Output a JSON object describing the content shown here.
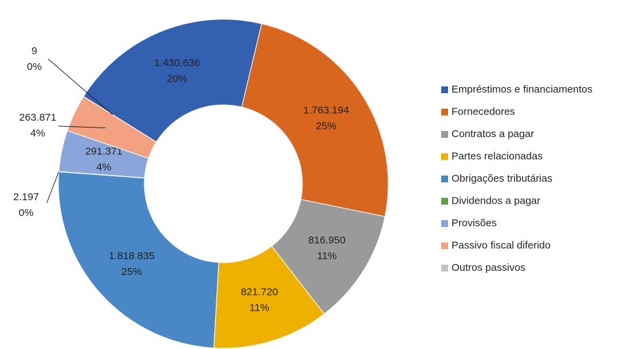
{
  "chart_data": {
    "type": "donut",
    "categories": [
      "Empréstimos e financiamentos",
      "Fornecedores",
      "Contratos a pagar",
      "Partes relacionadas",
      "Obrigações tributárias",
      "Dividendos a pagar",
      "Provisões",
      "Passivo fiscal diferido",
      "Outros passivos"
    ],
    "values": [
      1430636,
      1763194,
      816950,
      821720,
      1818835,
      2197,
      291371,
      263871,
      9
    ],
    "value_labels": [
      "1.430.636",
      "1.763.194",
      "816.950",
      "821.720",
      "1.818.835",
      "2.197",
      "291.371",
      "263.871",
      "9"
    ],
    "percents": [
      20,
      25,
      11,
      11,
      25,
      0,
      4,
      4,
      0
    ],
    "percent_labels": [
      "20%",
      "25%",
      "11%",
      "11%",
      "25%",
      "0%",
      "4%",
      "4%",
      "0%"
    ],
    "colors": [
      "#3360b0",
      "#d8661f",
      "#9a9a9a",
      "#efb100",
      "#4a87c6",
      "#5aa03c",
      "#8aa5da",
      "#f4a181",
      "#c4c4c4"
    ],
    "legend": "right"
  }
}
